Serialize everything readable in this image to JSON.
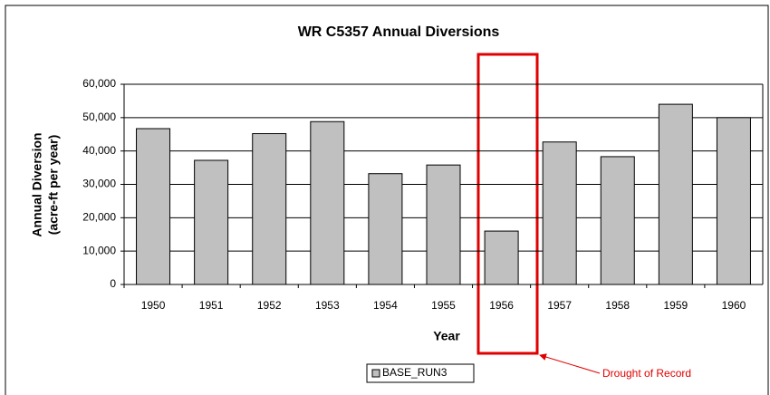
{
  "chart_data": {
    "type": "bar",
    "title": "WR C5357 Annual Diversions",
    "x_label": "Year",
    "y_label": [
      "Annual Diversion",
      "(acre-ft per year)"
    ],
    "categories": [
      "1950",
      "1951",
      "1952",
      "1953",
      "1954",
      "1955",
      "1956",
      "1957",
      "1958",
      "1959",
      "1960"
    ],
    "series": [
      {
        "name": "BASE_RUN3",
        "color": "#c0c0c0",
        "values": [
          46700,
          37200,
          45200,
          48800,
          33200,
          35800,
          16000,
          42700,
          38300,
          54000,
          50000
        ]
      }
    ],
    "ylim": [
      0,
      60000
    ],
    "yticks": [
      0,
      {
        "value": 10000,
        "label": "10,000"
      },
      {
        "value": 20000,
        "label": "20,000"
      },
      {
        "value": 30000,
        "label": "30,000"
      },
      {
        "value": 40000,
        "label": "40,000"
      },
      {
        "value": 50000,
        "label": "50,000"
      },
      {
        "value": 60000,
        "label": "60,000"
      }
    ],
    "grid": true,
    "legend": "bottom",
    "annotation": "Drought of Record"
  }
}
